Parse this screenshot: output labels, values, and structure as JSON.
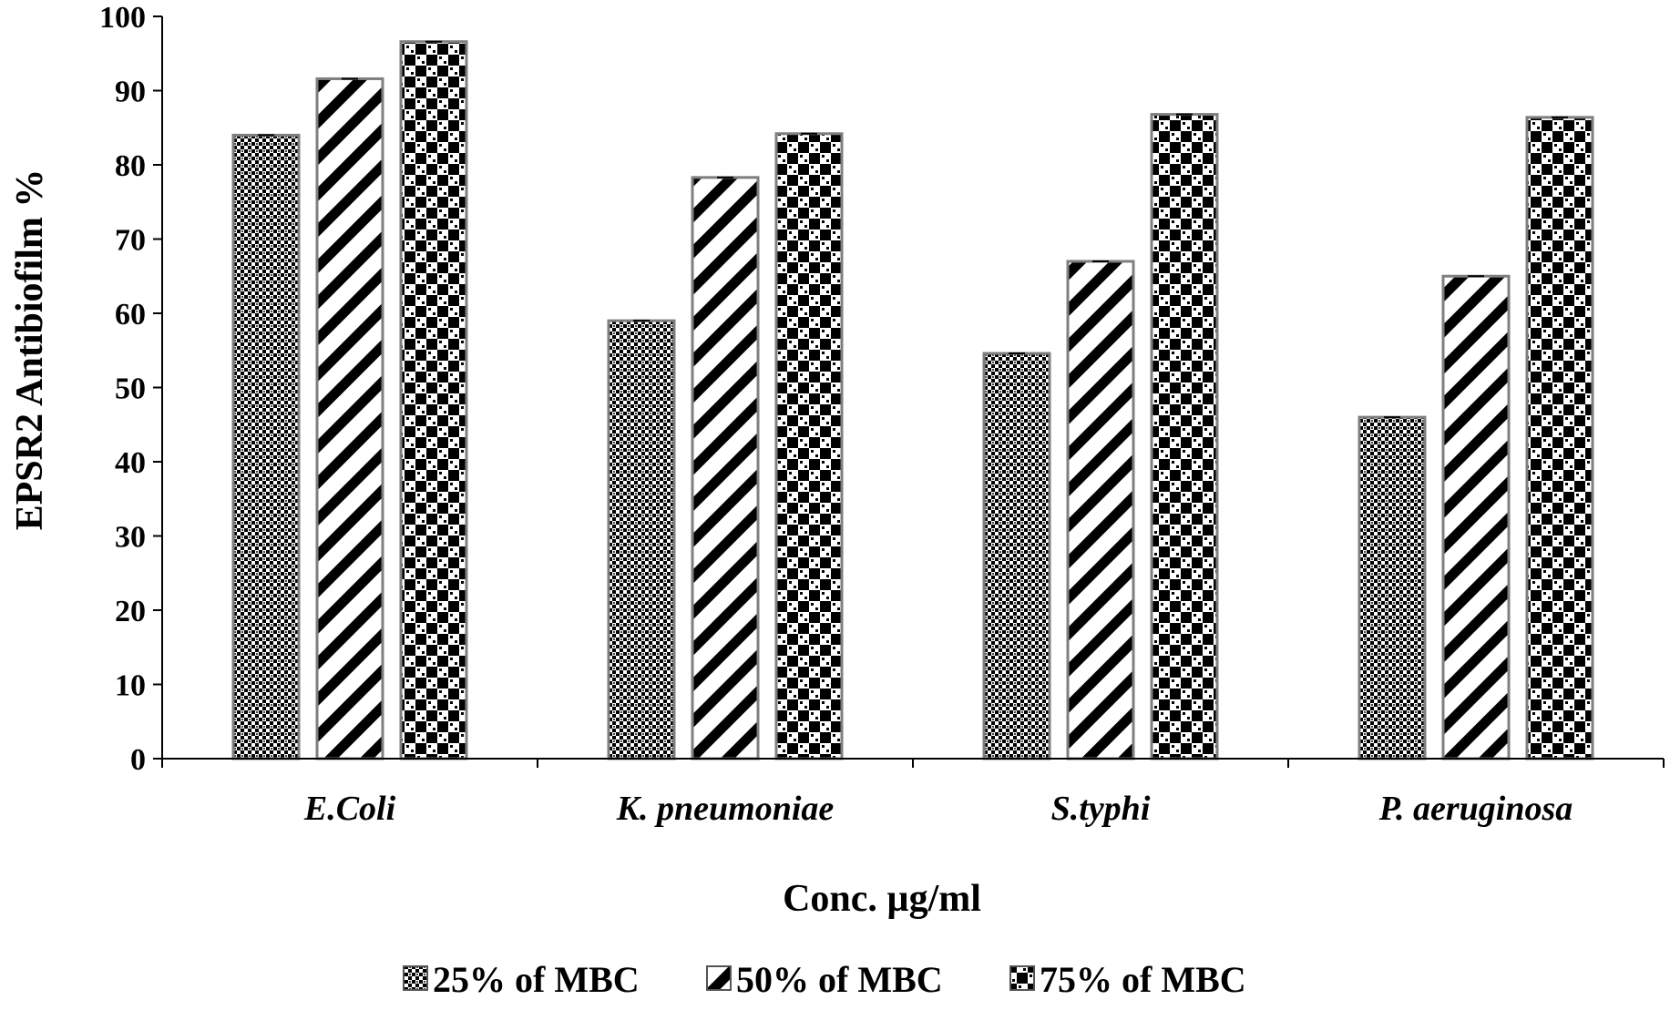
{
  "chart_data": {
    "type": "bar",
    "title": "",
    "xlabel": "Conc. µg/ml",
    "ylabel": "EPSR2 Antibiofilm %",
    "ylim": [
      0,
      100
    ],
    "yticks": [
      0,
      10,
      20,
      30,
      40,
      50,
      60,
      70,
      80,
      90,
      100
    ],
    "categories": [
      "E.Coli",
      "K. pneumoniae",
      "S.typhi",
      "P. aeruginosa"
    ],
    "series": [
      {
        "name": "25% of MBC",
        "values": [
          84,
          59,
          54.6,
          46
        ],
        "pattern": "checker-dense"
      },
      {
        "name": "50% of MBC",
        "values": [
          91.6,
          78.3,
          67,
          65
        ],
        "pattern": "diagonal-stripes"
      },
      {
        "name": "75% of MBC",
        "values": [
          96.6,
          84.2,
          86.8,
          86.4
        ],
        "pattern": "checker-blocks"
      }
    ],
    "grid": false,
    "legend_position": "bottom-center",
    "colors": {
      "bar_stroke": "#7f7f7f",
      "ink": "#000000",
      "background": "#ffffff"
    }
  }
}
